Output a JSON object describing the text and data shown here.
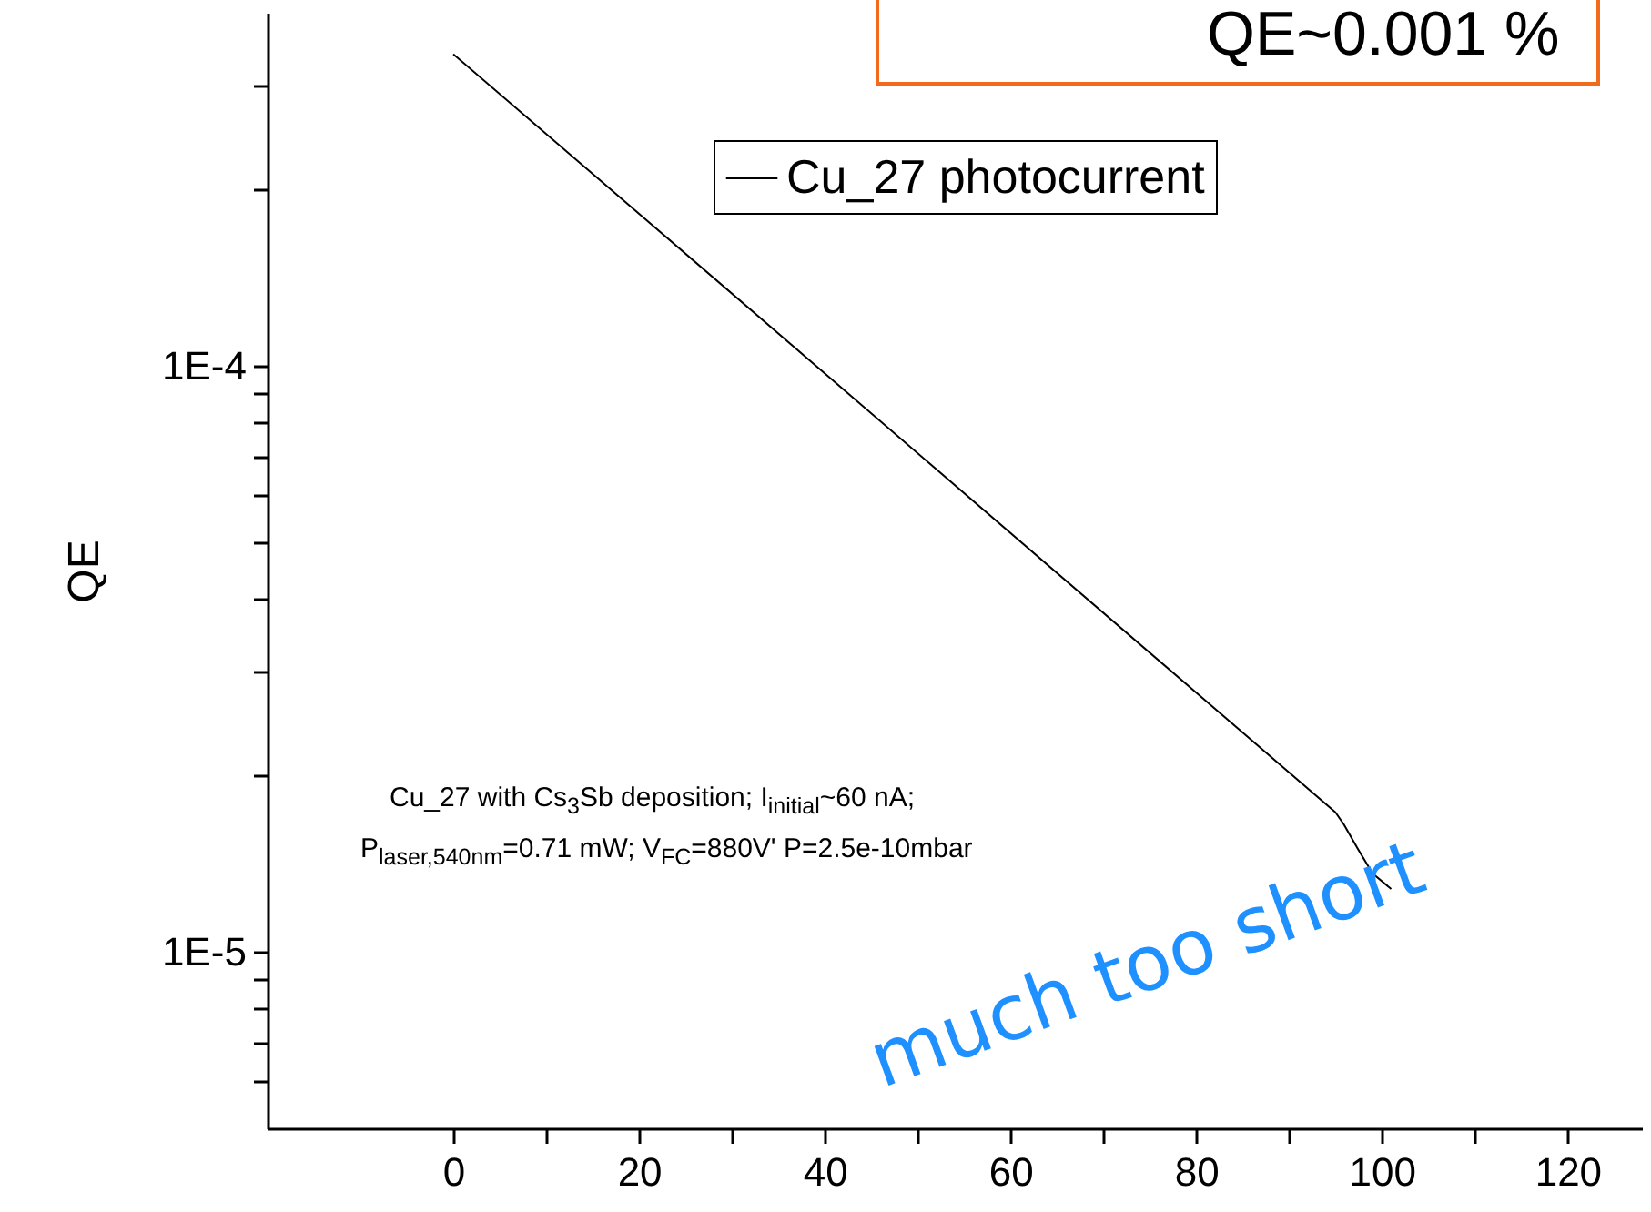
{
  "chart_data": {
    "type": "line",
    "ylabel": "QE",
    "log": "y",
    "xlim": [
      -20,
      128
    ],
    "ylim": [
      5e-06,
      0.0004
    ],
    "xticks": [
      0,
      {
        "value": 10,
        "label": null
      },
      20,
      {
        "value": 30,
        "label": null
      },
      40,
      {
        "value": 50,
        "label": null
      },
      60,
      {
        "value": 70,
        "label": null
      },
      80,
      {
        "value": 90,
        "label": null
      },
      100,
      {
        "value": 110,
        "label": null
      },
      120
    ],
    "yticks": [
      {
        "value": 6e-06,
        "label": null
      },
      {
        "value": 7e-06,
        "label": null
      },
      {
        "value": 8e-06,
        "label": null
      },
      {
        "value": 9e-06,
        "label": null
      },
      {
        "value": 1e-05,
        "label": "1E-5"
      },
      {
        "value": 2e-05,
        "label": null
      },
      {
        "value": 3e-05,
        "label": null
      },
      {
        "value": 4e-05,
        "label": null
      },
      {
        "value": 5e-05,
        "label": null
      },
      {
        "value": 6e-05,
        "label": null
      },
      {
        "value": 7e-05,
        "label": null
      },
      {
        "value": 8e-05,
        "label": null
      },
      {
        "value": 9e-05,
        "label": null
      },
      {
        "value": 0.0001,
        "label": "1E-4"
      },
      {
        "value": 0.0002,
        "label": null
      },
      {
        "value": 0.0003,
        "label": null
      }
    ],
    "series": [
      {
        "name": "Cu_27 photocurrent",
        "color": "#000000",
        "x": [
          0,
          95,
          95.9,
          97.4,
          99,
          101
        ],
        "values": [
          0.00034,
          1.73e-05,
          1.65e-05,
          1.5e-05,
          1.36e-05,
          1.28e-05
        ]
      }
    ],
    "legend": "top",
    "grid": false,
    "annotations": [
      "Cu_27 with Cs$_{3}$Sb deposition; I$_{initial}$~60 nA;",
      "P$_{laser,540nm}$=0.71 mW; V$_{FC}$=880V' P=2.5e-10mbar",
      "QE~0.001 %",
      "much too short"
    ]
  }
}
